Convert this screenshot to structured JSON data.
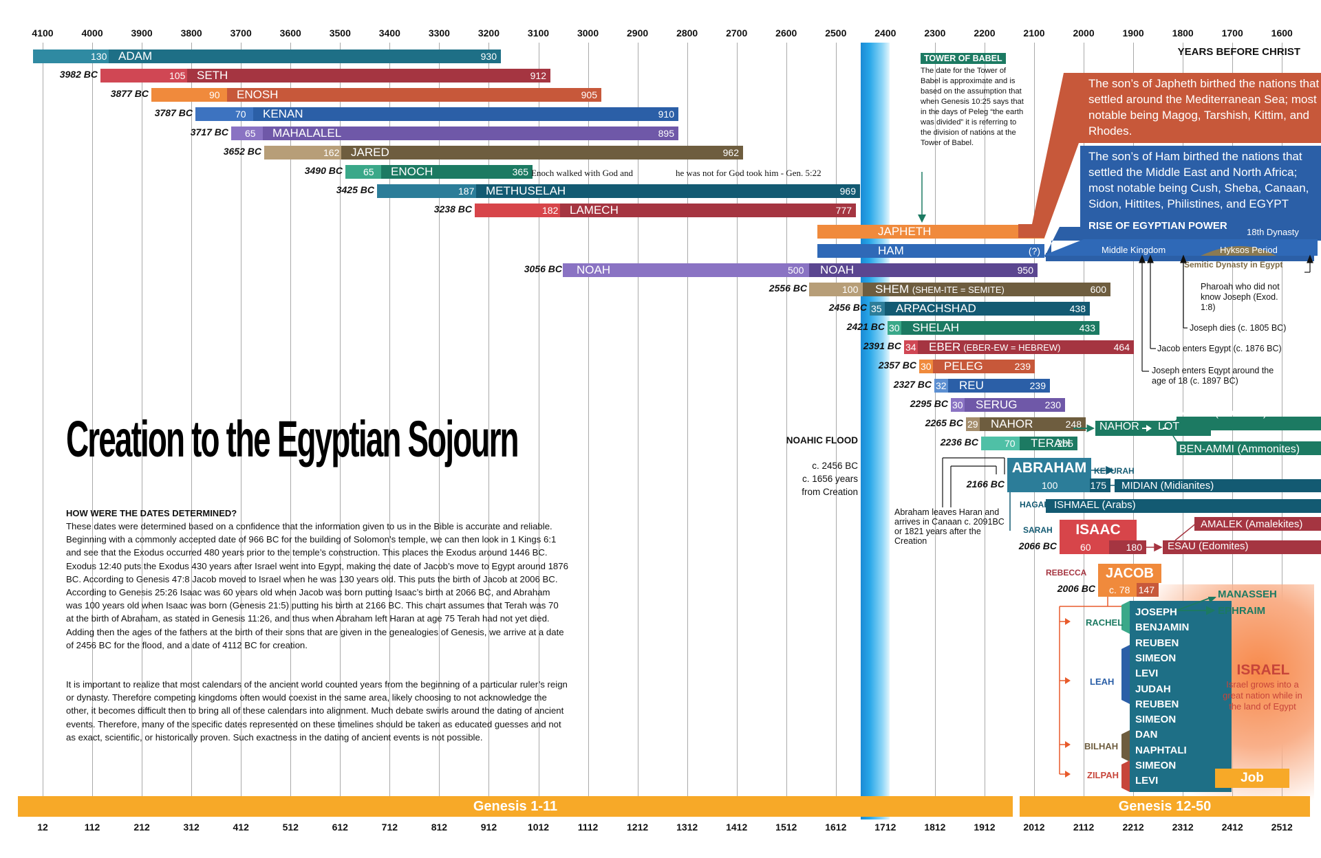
{
  "header": {
    "years_before_christ": "YEARS BEFORE CHRIST",
    "ticks_bc": [
      "4100",
      "4000",
      "3900",
      "3800",
      "3700",
      "3600",
      "3500",
      "3400",
      "3300",
      "3200",
      "3100",
      "3000",
      "2900",
      "2800",
      "2700",
      "2600",
      "2500",
      "2400",
      "2300",
      "2200",
      "2100",
      "2000",
      "1900",
      "1800",
      "1700",
      "1600"
    ],
    "ticks_am": [
      "12",
      "112",
      "212",
      "312",
      "412",
      "512",
      "612",
      "712",
      "812",
      "912",
      "1012",
      "1112",
      "1212",
      "1312",
      "1412",
      "1512",
      "1612",
      "1712",
      "1812",
      "1912",
      "2012",
      "2112",
      "2212",
      "2312",
      "2412",
      "2512"
    ]
  },
  "title": "Creation to the Egyptian Sojourn",
  "bands": {
    "genesis_1_11": "Genesis 1-11",
    "genesis_12_50": "Genesis 12-50",
    "job": "Job"
  },
  "colors": {
    "orange_band": "#f7a928",
    "teal": "#1e6f86",
    "red": "#c0393b",
    "purple": "#6f58a8",
    "olive": "#7d6b46",
    "tan": "#a48d6c",
    "blue": "#2b5fa7",
    "green": "#1c7a62",
    "flood": "#27a6e8"
  },
  "patriarchs": [
    {
      "name": "ADAM",
      "birth_bc": "",
      "begat_age": "130",
      "death_age": "930",
      "color": "#1e6f86",
      "light": "#2f8aa2"
    },
    {
      "name": "SETH",
      "birth_bc": "3982 BC",
      "begat_age": "105",
      "death_age": "912",
      "color": "#a53541",
      "light": "#d04754"
    },
    {
      "name": "ENOSH",
      "birth_bc": "3877 BC",
      "begat_age": "90",
      "death_age": "905",
      "color": "#c7583a",
      "light": "#f08a3c"
    },
    {
      "name": "KENAN",
      "birth_bc": "3787 BC",
      "begat_age": "70",
      "death_age": "910",
      "color": "#2b5fa7",
      "light": "#3d73c0"
    },
    {
      "name": "MAHALALEL",
      "birth_bc": "3717 BC",
      "begat_age": "65",
      "death_age": "895",
      "color": "#6f58a8",
      "light": "#8a73c3"
    },
    {
      "name": "JARED",
      "birth_bc": "3652 BC",
      "begat_age": "162",
      "death_age": "962",
      "color": "#6e5d3f",
      "light": "#b79e78"
    },
    {
      "name": "ENOCH",
      "birth_bc": "3490 BC",
      "begat_age": "65",
      "death_age": "365",
      "color": "#1c7a62",
      "light": "#3aa889"
    },
    {
      "name": "METHUSELAH",
      "birth_bc": "3425 BC",
      "begat_age": "187",
      "death_age": "969",
      "color": "#135a72",
      "light": "#2c7d99"
    },
    {
      "name": "LAMECH",
      "birth_bc": "3238 BC",
      "begat_age": "182",
      "death_age": "777",
      "color": "#a53541",
      "light": "#d7454a"
    }
  ],
  "enoch_note": "Enoch walked with God and",
  "enoch_note2": "he was not for God took him - Gen. 5:22",
  "noah": {
    "name": "NOAH",
    "name2": "NOAH",
    "birth_bc": "3056 BC",
    "begat_age": "500",
    "death_age": "950"
  },
  "japheth": {
    "name": "JAPHETH",
    "q": "(?)"
  },
  "ham": {
    "name": "HAM",
    "q": "(?)"
  },
  "shem": {
    "name": "SHEM",
    "sub": "(SHEM-ITE = SEMITE)",
    "birth_bc": "2556 BC",
    "begat_age": "100",
    "death_age": "600"
  },
  "line2": [
    {
      "name": "ARPACHSHAD",
      "sub": "",
      "birth_bc": "2456 BC",
      "begat_age": "35",
      "death_age": "438"
    },
    {
      "name": "SHELAH",
      "sub": "",
      "birth_bc": "2421 BC",
      "begat_age": "30",
      "death_age": "433"
    },
    {
      "name": "EBER",
      "sub": "(EBER-EW = HEBREW)",
      "birth_bc": "2391 BC",
      "begat_age": "34",
      "death_age": "464"
    },
    {
      "name": "PELEG",
      "sub": "",
      "birth_bc": "2357 BC",
      "begat_age": "30",
      "death_age": "239"
    },
    {
      "name": "REU",
      "sub": "",
      "birth_bc": "2327 BC",
      "begat_age": "32",
      "death_age": "239"
    },
    {
      "name": "SERUG",
      "sub": "",
      "birth_bc": "2295 BC",
      "begat_age": "30",
      "death_age": "230"
    },
    {
      "name": "NAHOR",
      "sub": "",
      "birth_bc": "2265 BC",
      "begat_age": "29",
      "death_age": "248"
    },
    {
      "name": "TERAH",
      "sub": "",
      "birth_bc": "2236 BC",
      "begat_age": "70",
      "death_age": "205"
    }
  ],
  "terah_branches": {
    "nahor": "NAHOR",
    "lot": "LOT",
    "moab": "MOAB (Moabites)",
    "benammi": "BEN-AMMI (Ammonites)"
  },
  "abraham": {
    "name": "ABRAHAM",
    "birth_bc": "2166 BC",
    "begat_age": "100",
    "death_age": "175",
    "keturah": "KETURAH",
    "midian": "MIDIAN (Midianites)",
    "hagar": "HAGAR",
    "ishmael": "ISHMAEL (Arabs)",
    "sarah": "SARAH"
  },
  "isaac": {
    "name": "ISAAC",
    "birth_bc": "2066 BC",
    "begat_age": "60",
    "death_age": "180",
    "rebecca": "REBECCA",
    "esau": "ESAU (Edomites)",
    "amalek": "AMALEK (Amalekites)"
  },
  "jacob": {
    "name": "JACOB",
    "birth_bc": "2006 BC",
    "begat_age": "c. 78",
    "death_age": "147"
  },
  "wives": {
    "rachel": "RACHEL",
    "leah": "LEAH",
    "bilhah": "BILHAH",
    "zilpah": "ZILPAH"
  },
  "sons": [
    "JOSEPH",
    "BENJAMIN",
    "REUBEN",
    "SIMEON",
    "LEVI",
    "JUDAH",
    "REUBEN",
    "SIMEON",
    "DAN",
    "NAPHTALI",
    "SIMEON",
    "LEVI"
  ],
  "joseph_sons": {
    "manasseh": "MANASSEH",
    "ephraim": "EPHRAIM"
  },
  "israel": {
    "title": "ISRAEL",
    "text": "Israel grows into a great nation while in the land of Egypt"
  },
  "tower": {
    "title": "TOWER OF BABEL",
    "text": "The date for the Tower of Babel is approximate and is based on the assumption that when Genesis 10:25 says that in the days of Peleg “the earth was divided” it is referring to the division of nations at the Tower of Babel."
  },
  "japheth_info": "The son’s of Japheth birthed the nations that settled around the Mediterranean Sea; most notable being Magog, Tarshish, Kittim, and Rhodes.",
  "ham_info": "The son’s of Ham birthed the nations that settled the Middle East and North Africa; most notable being Cush, Sheba, Canaan, Sidon, Hittites, Philistines, and EGYPT",
  "egypt": {
    "title": "RISE OF EGYPTIAN POWER",
    "middle": "Middle Kingdom",
    "hyksos": "Hyksos Period",
    "dyn18": "18th Dynasty",
    "semitic": "Semitic Dynasty in Egypt"
  },
  "notes": {
    "pharaoh": "Pharoah who did not know Joseph (Exod. 1:8)",
    "joseph_dies": "Joseph dies (c. 1805 BC)",
    "jacob_enters": "Jacob enters Egypt (c. 1876 BC)",
    "joseph_enters": "Joseph enters Eqypt around the age of 18 (c. 1897 BC)"
  },
  "flood": {
    "title": "NOAHIC FLOOD",
    "date": "c. 2456 BC",
    "years": "c. 1656 years",
    "from": "from Creation"
  },
  "abraham_leaves": "Abraham leaves Haran and arrives in Canaan c. 2091BC or 1821 years after the Creation",
  "dates_heading": "HOW WERE THE DATES DETERMINED?",
  "dates_p1": "These dates were determined based on a confidence that the information given to us in the Bible is accurate and reliable.  Beginning with a commonly accepted date of 966 BC for the building of Solomon’s temple, we can then look in 1 Kings 6:1 and see that the Exodus occurred 480 years prior to the temple’s construction. This places the Exodus around 1446 BC.  Exodus 12:40 puts the Exodus 430 years after Israel went into Egypt, making the date of Jacob’s move to Egypt around 1876 BC.  According to Genesis 47:8 Jacob moved to Israel when he was 130 years old. This puts the birth of Jacob at 2006 BC. According to Genesis 25:26 Isaac was 60 years old when Jacob was born putting Isaac’s birth at 2066 BC, and Abraham was 100 years old when Isaac was born (Genesis 21:5) putting his birth at 2166 BC.  This chart assumes that Terah was 70 at the birth of Abraham, as stated in Genesis 11:26, and thus when Abraham left Haran at age 75 Terah had not yet died. Adding then the ages of the fathers at the birth of their sons that are given in the genealogies of Genesis, we arrive at a date of 2456 BC for the flood, and a date of 4112 BC for creation.",
  "dates_p2": "It is important to realize that most calendars of the ancient world counted years from the beginning of a particular ruler’s reign or dynasty.  Therefore competing kingdoms often would coexist in the same area, likely choosing to not acknowledge the other, it becomes difficult then to bring all of these calendars into alignment.  Much debate swirls around the dating of ancient events.  Therefore, many of the specific dates represented on these timelines should be taken as educated guesses and not as exact, scientific, or historically proven.  Such exactness in the dating of ancient events is not possible."
}
